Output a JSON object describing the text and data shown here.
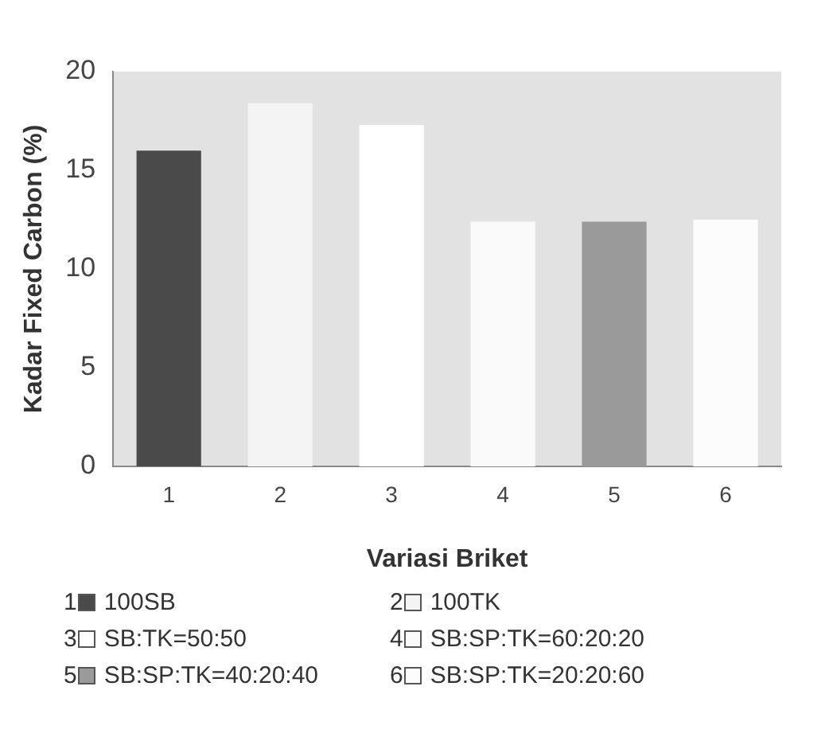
{
  "chart_data": {
    "type": "bar",
    "xlabel": "Variasi Briket",
    "ylabel": "Kadar Fixed Carbon (%)",
    "categories": [
      "1",
      "2",
      "3",
      "4",
      "5",
      "6"
    ],
    "values": [
      16.0,
      18.4,
      17.3,
      12.4,
      12.4,
      12.5
    ],
    "colors": [
      "#4a4a4a",
      "#f4f4f4",
      "#ffffff",
      "#fafafa",
      "#9a9a9a",
      "#fcfcfc"
    ],
    "ylim": [
      0,
      20
    ],
    "yticks": [
      0,
      5,
      10,
      15,
      20
    ],
    "grid": false,
    "annotations": [
      "100SB",
      "100TK",
      "SB:TK=50:50",
      "SB:SP:TK=60:20:20",
      "SB:SP:TK=40:20:40",
      "SB:SP:TK=20:20:60"
    ]
  }
}
